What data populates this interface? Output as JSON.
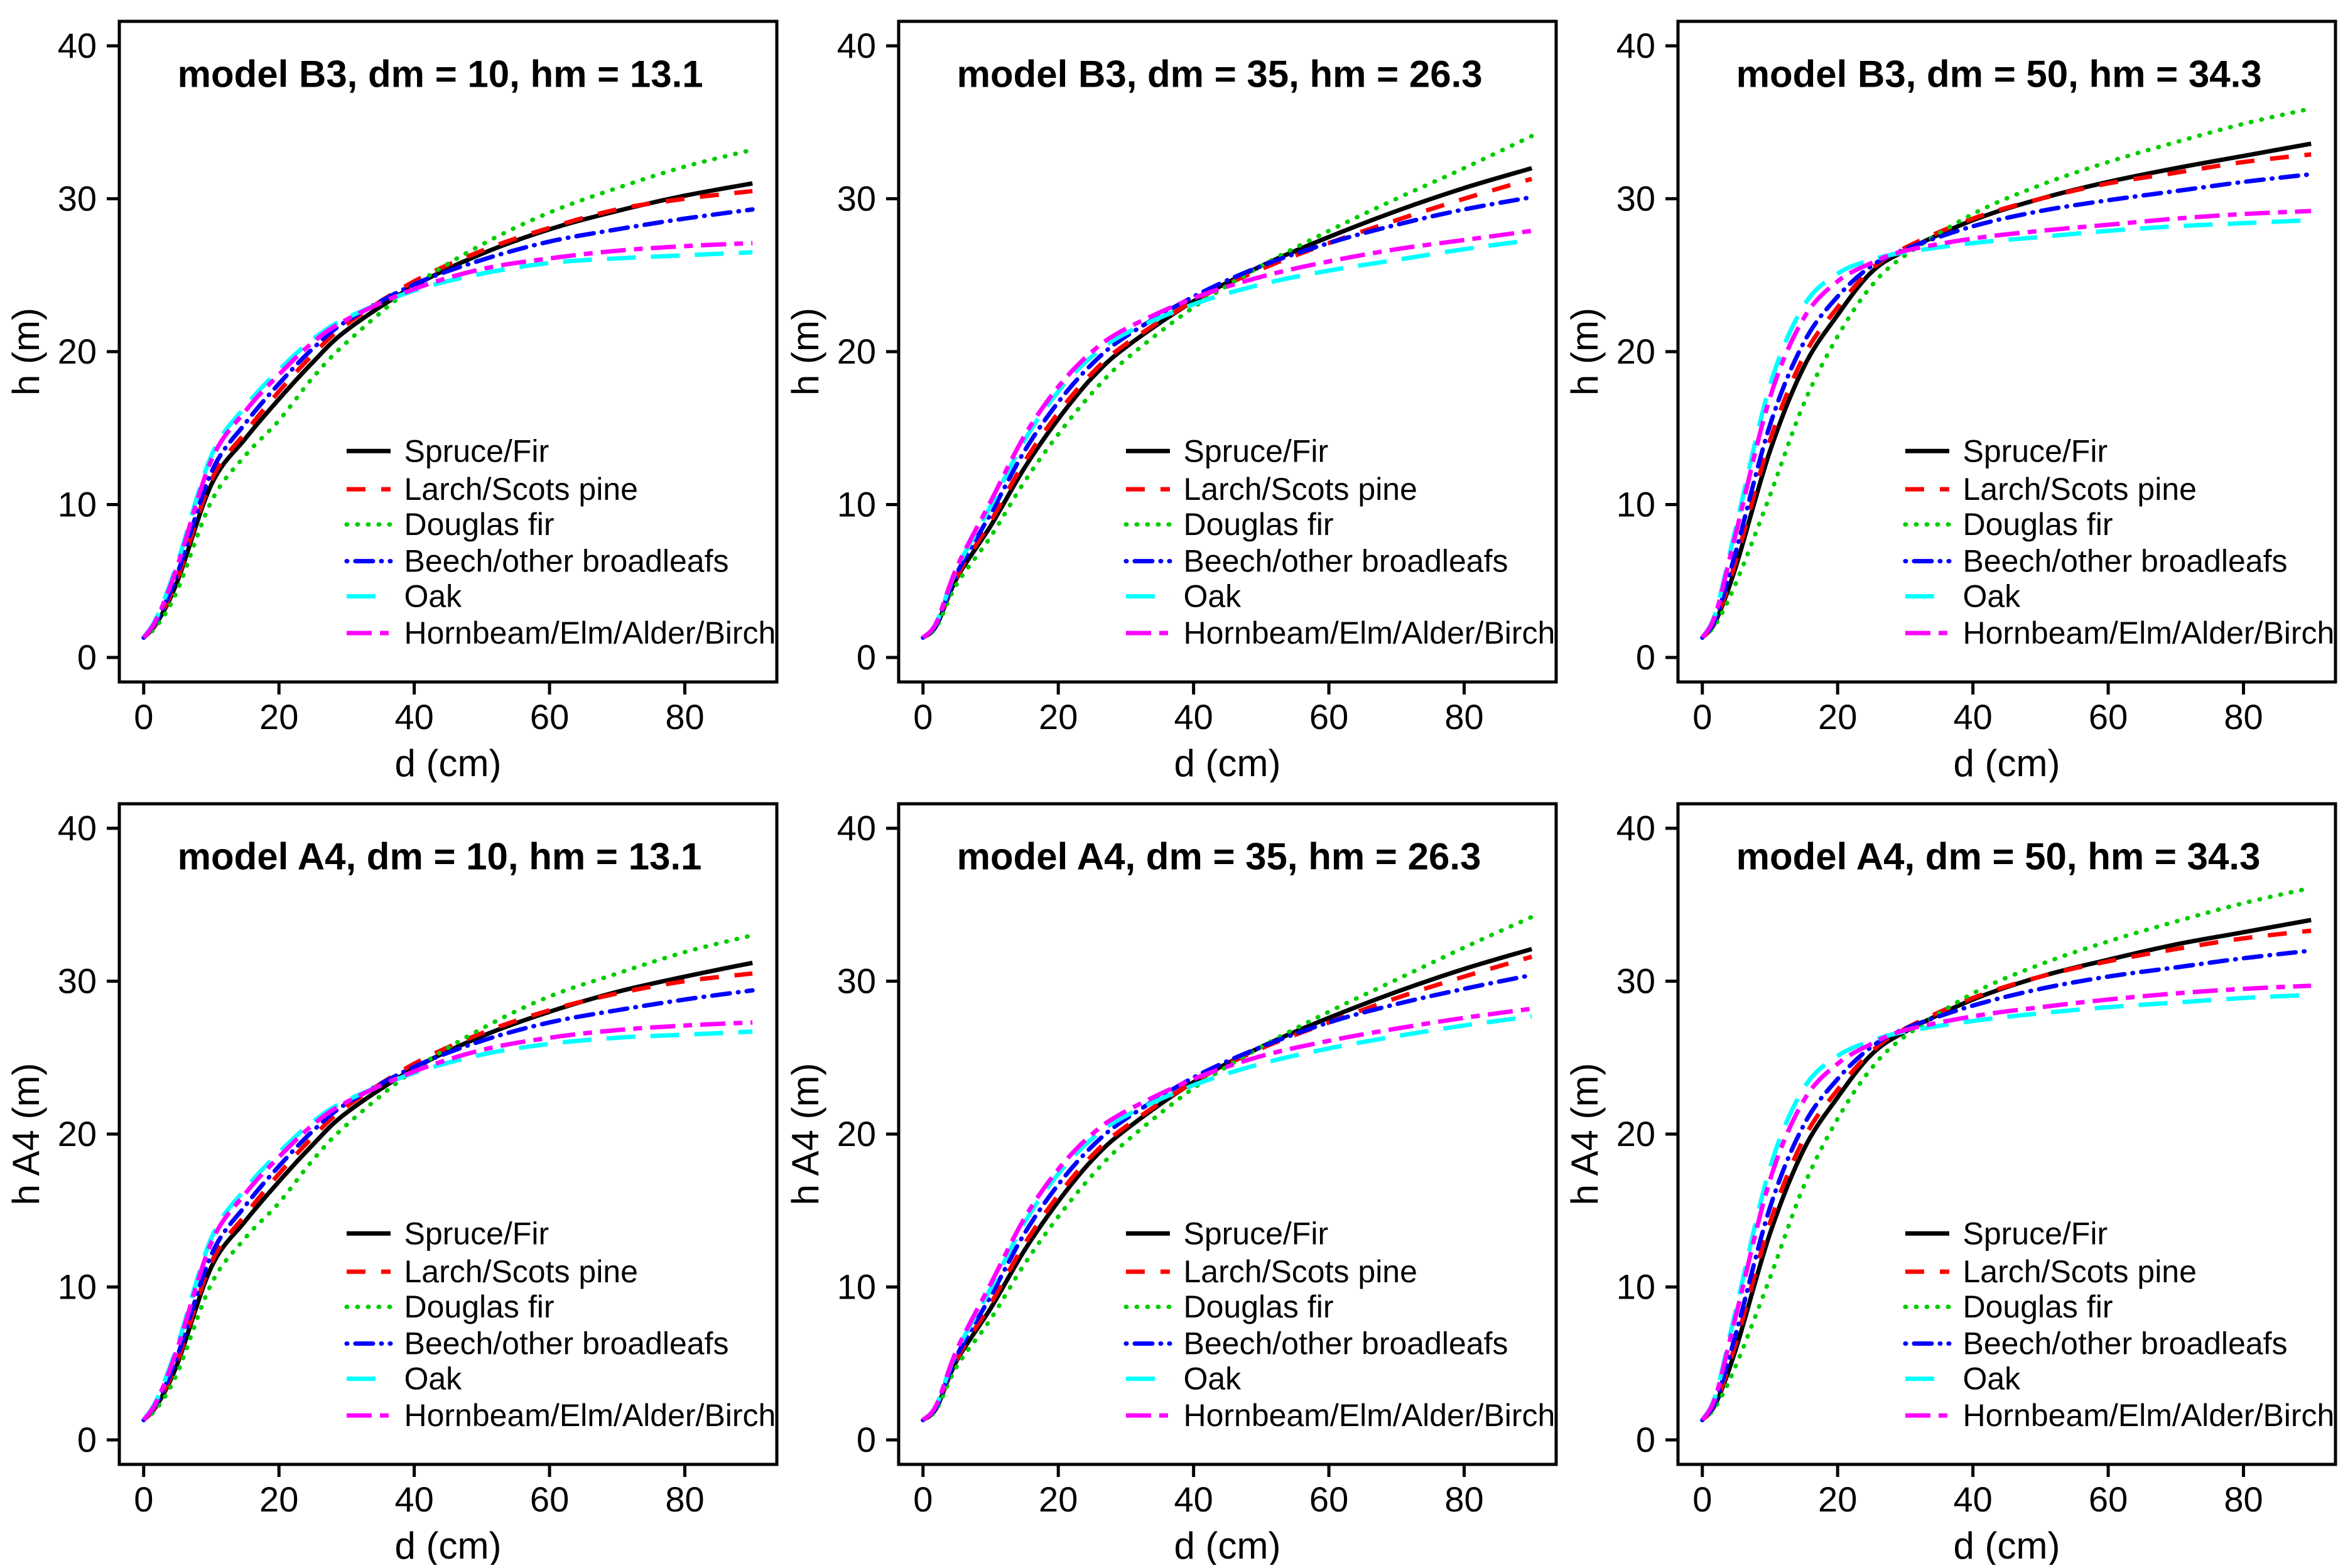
{
  "figure": {
    "background": "#ffffff",
    "rows": 2,
    "cols": 3,
    "description": "Six-panel line chart figure of species-specific height-diameter curves for models B3 and A4"
  },
  "axes": {
    "xlabel": "d (cm)",
    "x_ticks": [
      0,
      20,
      40,
      60,
      80
    ],
    "y_ticks": [
      0,
      10,
      20,
      30,
      40
    ],
    "x_range": [
      -3.6,
      93.6
    ],
    "y_range": [
      -1.6,
      41.6
    ],
    "grid": "off",
    "box": "on"
  },
  "species": [
    {
      "id": "spruce",
      "label": "Spruce/Fir",
      "color": "#000000",
      "dash": "solid"
    },
    {
      "id": "larch",
      "label": "Larch/Scots pine",
      "color": "#FF0000",
      "dash": "dashed"
    },
    {
      "id": "douglas",
      "label": "Douglas fir",
      "color": "#00CD00",
      "dash": "dotted"
    },
    {
      "id": "beech",
      "label": "Beech/other broadleafs",
      "color": "#0000FF",
      "dash": "dotdash"
    },
    {
      "id": "oak",
      "label": "Oak",
      "color": "#00FFFF",
      "dash": "longdash"
    },
    {
      "id": "hornbeam",
      "label": "Hornbeam/Elm/Alder/Birch",
      "color": "#FF00FF",
      "dash": "twodash"
    }
  ],
  "legend": {
    "position": "right-center-inside",
    "entry_h": [
      13.5,
      11.0,
      8.7,
      6.3,
      4.0,
      1.6
    ]
  },
  "chart_data": [
    {
      "type": "line",
      "title": "model B3, dm = 10, hm = 13.1",
      "model": "B3",
      "dm": 10,
      "hm": 13.1,
      "xlabel": "d (cm)",
      "ylabel": "h (m)",
      "x": [
        0,
        2,
        5,
        10,
        15,
        20,
        25,
        30,
        40,
        50,
        60,
        70,
        80,
        90
      ],
      "series": [
        {
          "name": "Spruce/Fir",
          "values": [
            1.3,
            2.3,
            5.0,
            11.3,
            14.3,
            16.9,
            19.3,
            21.4,
            24.3,
            26.4,
            28.0,
            29.2,
            30.2,
            31.0
          ]
        },
        {
          "name": "Larch/Scots pine",
          "values": [
            1.3,
            2.4,
            5.2,
            11.6,
            14.7,
            17.4,
            19.8,
            21.8,
            24.6,
            26.6,
            28.1,
            29.3,
            30.0,
            30.5
          ]
        },
        {
          "name": "Douglas fir",
          "values": [
            1.3,
            2.1,
            4.4,
            10.2,
            13.2,
            15.5,
            18.3,
            20.6,
            24.3,
            27.0,
            29.1,
            30.7,
            32.1,
            33.2
          ]
        },
        {
          "name": "Beech/other broadleafs",
          "values": [
            1.3,
            2.5,
            5.5,
            12.1,
            15.3,
            17.9,
            20.2,
            22.0,
            24.4,
            26.0,
            27.2,
            28.0,
            28.7,
            29.3
          ]
        },
        {
          "name": "Oak",
          "values": [
            1.3,
            2.7,
            6.2,
            13.2,
            16.4,
            18.8,
            20.8,
            22.2,
            24.0,
            25.1,
            25.8,
            26.1,
            26.3,
            26.5
          ]
        },
        {
          "name": "Hornbeam/Elm/Alder/Birch",
          "values": [
            1.3,
            2.6,
            6.0,
            12.9,
            16.1,
            18.5,
            20.6,
            22.1,
            24.1,
            25.4,
            26.1,
            26.6,
            26.9,
            27.1
          ]
        }
      ]
    },
    {
      "type": "line",
      "title": "model B3, dm = 35, hm = 26.3",
      "model": "B3",
      "dm": 35,
      "hm": 26.3,
      "xlabel": "d (cm)",
      "ylabel": "h (m)",
      "x": [
        0,
        2,
        5,
        10,
        15,
        20,
        25,
        30,
        40,
        50,
        60,
        70,
        80,
        90
      ],
      "series": [
        {
          "name": "Spruce/Fir",
          "values": [
            1.3,
            2.1,
            5.2,
            8.6,
            12.4,
            15.6,
            18.3,
            20.3,
            23.3,
            25.6,
            27.5,
            29.2,
            30.7,
            32.0
          ]
        },
        {
          "name": "Larch/Scots pine",
          "values": [
            1.3,
            2.2,
            5.3,
            8.9,
            12.8,
            16.0,
            18.6,
            20.5,
            23.3,
            25.4,
            27.1,
            28.6,
            30.0,
            31.3
          ]
        },
        {
          "name": "Douglas fir",
          "values": [
            1.3,
            2.0,
            4.8,
            7.9,
            11.5,
            14.6,
            17.3,
            19.5,
            22.9,
            25.6,
            27.9,
            30.0,
            32.0,
            34.1
          ]
        },
        {
          "name": "Beech/other broadleafs",
          "values": [
            1.3,
            2.2,
            5.5,
            9.4,
            13.5,
            16.7,
            19.2,
            21.0,
            23.6,
            25.6,
            27.1,
            28.3,
            29.3,
            30.1
          ]
        },
        {
          "name": "Oak",
          "values": [
            1.3,
            2.3,
            5.8,
            9.9,
            14.2,
            17.4,
            19.7,
            21.2,
            23.1,
            24.4,
            25.3,
            26.0,
            26.7,
            27.3
          ]
        },
        {
          "name": "Hornbeam/Elm/Alder/Birch",
          "values": [
            1.3,
            2.3,
            5.9,
            10.2,
            14.5,
            17.7,
            20.0,
            21.5,
            23.5,
            24.9,
            25.9,
            26.7,
            27.3,
            27.9
          ]
        }
      ]
    },
    {
      "type": "line",
      "title": "model B3, dm = 50, hm = 34.3",
      "model": "B3",
      "dm": 50,
      "hm": 34.3,
      "xlabel": "d (cm)",
      "ylabel": "h (m)",
      "x": [
        0,
        2,
        5,
        10,
        15,
        20,
        25,
        30,
        40,
        50,
        60,
        70,
        80,
        90
      ],
      "series": [
        {
          "name": "Spruce/Fir",
          "values": [
            1.3,
            2.4,
            6.0,
            13.5,
            19.0,
            22.4,
            25.2,
            26.6,
            28.6,
            30.0,
            31.1,
            32.0,
            32.8,
            33.6
          ]
        },
        {
          "name": "Larch/Scots pine",
          "values": [
            1.3,
            2.5,
            6.4,
            14.2,
            19.7,
            22.9,
            25.4,
            26.8,
            28.7,
            30.0,
            31.0,
            31.7,
            32.4,
            32.9
          ]
        },
        {
          "name": "Douglas fir",
          "values": [
            1.3,
            2.2,
            4.9,
            10.6,
            16.6,
            21.0,
            24.3,
            26.3,
            29.0,
            30.9,
            32.4,
            33.7,
            34.9,
            35.9
          ]
        },
        {
          "name": "Beech/other broadleafs",
          "values": [
            1.3,
            2.6,
            7.0,
            15.2,
            20.6,
            23.6,
            25.6,
            26.7,
            28.2,
            29.2,
            29.9,
            30.5,
            31.1,
            31.6
          ]
        },
        {
          "name": "Oak",
          "values": [
            1.3,
            3.0,
            8.6,
            17.8,
            23.0,
            25.1,
            26.0,
            26.5,
            27.1,
            27.5,
            27.9,
            28.2,
            28.4,
            28.6
          ]
        },
        {
          "name": "Hornbeam/Elm/Alder/Birch",
          "values": [
            1.3,
            2.9,
            8.2,
            17.0,
            22.2,
            24.6,
            25.8,
            26.6,
            27.4,
            27.9,
            28.3,
            28.7,
            29.0,
            29.2
          ]
        }
      ]
    },
    {
      "type": "line",
      "title": "model A4, dm = 10, hm = 13.1",
      "model": "A4",
      "dm": 10,
      "hm": 13.1,
      "xlabel": "d (cm)",
      "ylabel": "h A4 (m)",
      "x": [
        0,
        2,
        5,
        10,
        15,
        20,
        25,
        30,
        40,
        50,
        60,
        70,
        80,
        90
      ],
      "series": [
        {
          "name": "Spruce/Fir",
          "values": [
            1.3,
            2.3,
            5.0,
            11.3,
            14.3,
            16.9,
            19.3,
            21.4,
            24.3,
            26.4,
            28.0,
            29.3,
            30.3,
            31.2
          ]
        },
        {
          "name": "Larch/Scots pine",
          "values": [
            1.3,
            2.4,
            5.2,
            11.6,
            14.7,
            17.4,
            19.8,
            21.8,
            24.6,
            26.6,
            28.1,
            29.2,
            30.0,
            30.5
          ]
        },
        {
          "name": "Douglas fir",
          "values": [
            1.3,
            2.1,
            4.4,
            10.2,
            13.2,
            15.5,
            18.3,
            20.6,
            24.2,
            26.9,
            29.0,
            30.5,
            31.9,
            33.0
          ]
        },
        {
          "name": "Beech/other broadleafs",
          "values": [
            1.3,
            2.5,
            5.5,
            12.1,
            15.3,
            17.9,
            20.2,
            22.0,
            24.4,
            26.1,
            27.3,
            28.1,
            28.8,
            29.4
          ]
        },
        {
          "name": "Oak",
          "values": [
            1.3,
            2.7,
            6.2,
            13.2,
            16.4,
            18.8,
            20.8,
            22.2,
            24.0,
            25.2,
            25.9,
            26.3,
            26.5,
            26.7
          ]
        },
        {
          "name": "Hornbeam/Elm/Alder/Birch",
          "values": [
            1.3,
            2.6,
            6.0,
            12.9,
            16.1,
            18.5,
            20.6,
            22.1,
            24.1,
            25.5,
            26.3,
            26.8,
            27.1,
            27.3
          ]
        }
      ]
    },
    {
      "type": "line",
      "title": "model A4, dm = 35, hm = 26.3",
      "model": "A4",
      "dm": 35,
      "hm": 26.3,
      "xlabel": "d (cm)",
      "ylabel": "h A4 (m)",
      "x": [
        0,
        2,
        5,
        10,
        15,
        20,
        25,
        30,
        40,
        50,
        60,
        70,
        80,
        90
      ],
      "series": [
        {
          "name": "Spruce/Fir",
          "values": [
            1.3,
            2.1,
            5.2,
            8.6,
            12.4,
            15.6,
            18.3,
            20.3,
            23.4,
            25.7,
            27.6,
            29.3,
            30.8,
            32.1
          ]
        },
        {
          "name": "Larch/Scots pine",
          "values": [
            1.3,
            2.2,
            5.3,
            8.9,
            12.8,
            16.0,
            18.6,
            20.5,
            23.4,
            25.6,
            27.3,
            28.9,
            30.3,
            31.6
          ]
        },
        {
          "name": "Douglas fir",
          "values": [
            1.3,
            2.0,
            4.8,
            7.9,
            11.5,
            14.6,
            17.3,
            19.5,
            23.0,
            25.7,
            28.0,
            30.1,
            32.2,
            34.2
          ]
        },
        {
          "name": "Beech/other broadleafs",
          "values": [
            1.3,
            2.2,
            5.5,
            9.4,
            13.5,
            16.7,
            19.2,
            21.0,
            23.7,
            25.7,
            27.3,
            28.5,
            29.5,
            30.4
          ]
        },
        {
          "name": "Oak",
          "values": [
            1.3,
            2.3,
            5.8,
            9.9,
            14.2,
            17.4,
            19.7,
            21.2,
            23.2,
            24.6,
            25.6,
            26.4,
            27.1,
            27.7
          ]
        },
        {
          "name": "Hornbeam/Elm/Alder/Birch",
          "values": [
            1.3,
            2.3,
            5.9,
            10.2,
            14.5,
            17.7,
            20.0,
            21.5,
            23.6,
            25.1,
            26.1,
            26.9,
            27.6,
            28.2
          ]
        }
      ]
    },
    {
      "type": "line",
      "title": "model A4, dm = 50, hm = 34.3",
      "model": "A4",
      "dm": 50,
      "hm": 34.3,
      "xlabel": "d (cm)",
      "ylabel": "h A4 (m)",
      "x": [
        0,
        2,
        5,
        10,
        15,
        20,
        25,
        30,
        40,
        50,
        60,
        70,
        80,
        90
      ],
      "series": [
        {
          "name": "Spruce/Fir",
          "values": [
            1.3,
            2.4,
            6.0,
            13.5,
            19.0,
            22.4,
            25.2,
            26.7,
            28.8,
            30.3,
            31.4,
            32.4,
            33.2,
            34.0
          ]
        },
        {
          "name": "Larch/Scots pine",
          "values": [
            1.3,
            2.5,
            6.4,
            14.2,
            19.7,
            22.9,
            25.4,
            26.9,
            28.9,
            30.3,
            31.3,
            32.1,
            32.8,
            33.3
          ]
        },
        {
          "name": "Douglas fir",
          "values": [
            1.3,
            2.2,
            4.9,
            10.6,
            16.6,
            21.0,
            24.3,
            26.4,
            29.2,
            31.1,
            32.6,
            33.9,
            35.1,
            36.1
          ]
        },
        {
          "name": "Beech/other broadleafs",
          "values": [
            1.3,
            2.6,
            7.0,
            15.2,
            20.6,
            23.6,
            25.7,
            26.9,
            28.4,
            29.5,
            30.3,
            30.9,
            31.5,
            32.0
          ]
        },
        {
          "name": "Oak",
          "values": [
            1.3,
            3.0,
            8.6,
            17.8,
            23.0,
            25.1,
            26.1,
            26.7,
            27.4,
            27.9,
            28.3,
            28.6,
            28.9,
            29.1
          ]
        },
        {
          "name": "Hornbeam/Elm/Alder/Birch",
          "values": [
            1.3,
            2.9,
            8.2,
            17.0,
            22.2,
            24.6,
            25.9,
            26.8,
            27.7,
            28.3,
            28.8,
            29.2,
            29.5,
            29.7
          ]
        }
      ]
    }
  ]
}
